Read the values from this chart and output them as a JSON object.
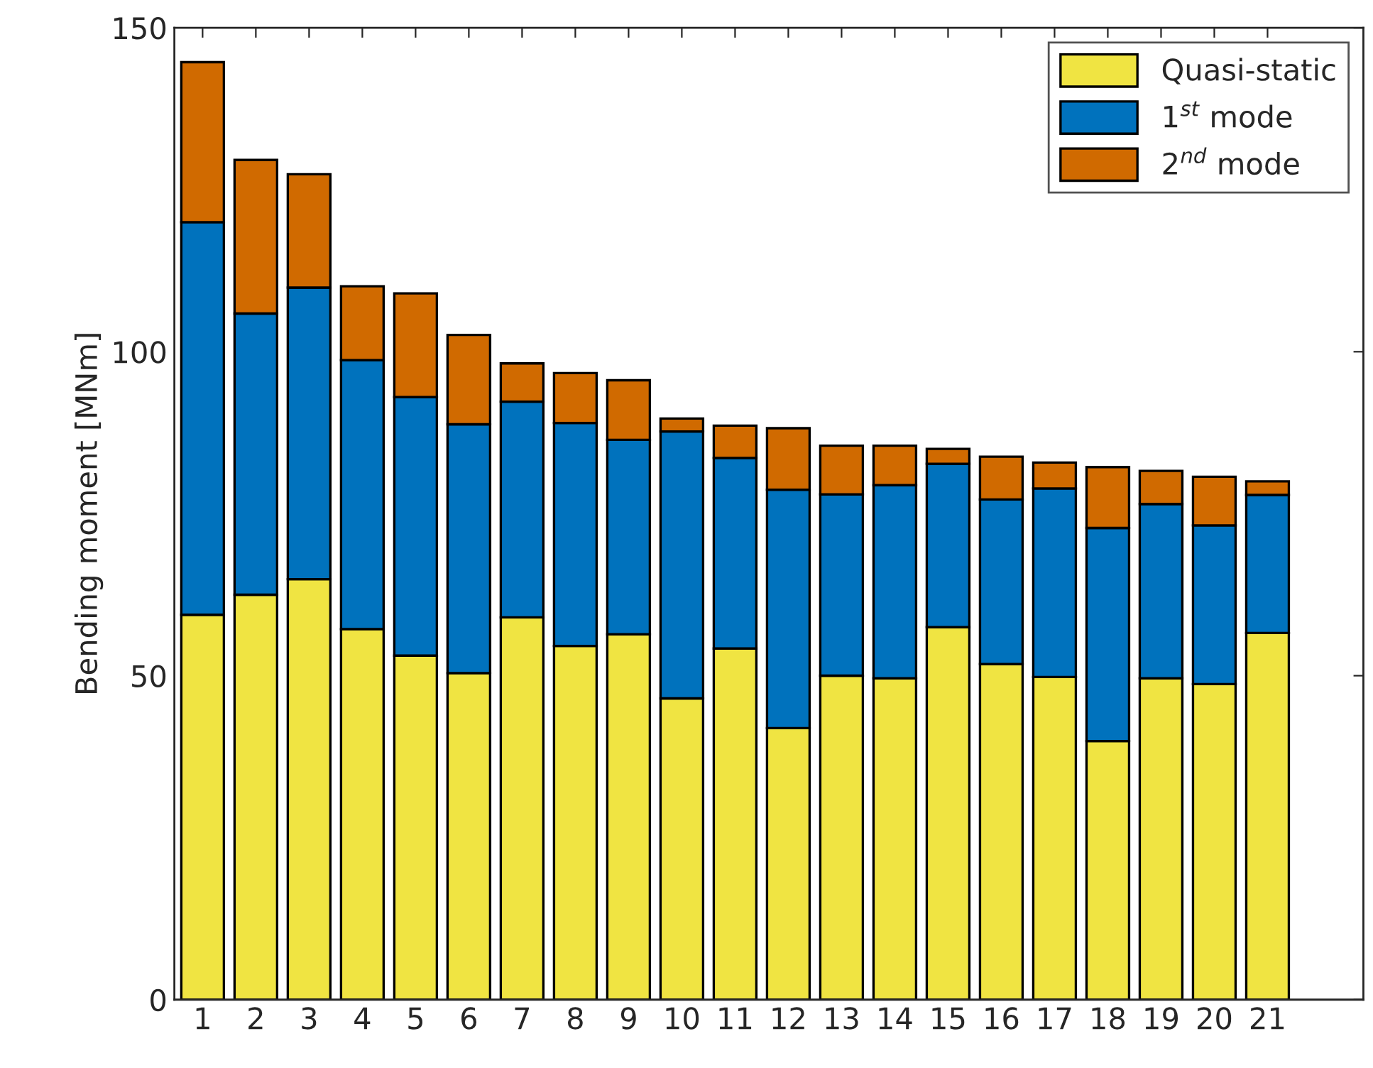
{
  "chart_data": {
    "type": "bar",
    "stacked": true,
    "ylabel": "Bending moment [MNm]",
    "categories": [
      "1",
      "2",
      "3",
      "4",
      "5",
      "6",
      "7",
      "8",
      "9",
      "10",
      "11",
      "12",
      "13",
      "14",
      "15",
      "16",
      "17",
      "18",
      "19",
      "20",
      "21"
    ],
    "series": [
      {
        "name": "Quasi-static",
        "color": "#f0e442",
        "values": [
          59.4,
          62.5,
          64.9,
          57.2,
          53.1,
          50.4,
          59,
          54.6,
          56.4,
          46.5,
          54.2,
          41.9,
          50,
          49.6,
          57.5,
          51.8,
          49.8,
          39.9,
          49.6,
          48.7,
          56.6
        ]
      },
      {
        "name": "1$^{st}$ mode",
        "color": "#0072bd",
        "values": [
          60.6,
          43.4,
          45,
          41.5,
          39.9,
          38.4,
          33.3,
          34.4,
          30,
          41.2,
          29.4,
          36.8,
          28,
          29.8,
          25.2,
          25.4,
          29.1,
          32.9,
          26.9,
          24.5,
          21.3
        ]
      },
      {
        "name": "2$^{nd}$ mode",
        "color": "#d06a00",
        "values": [
          24.7,
          23.7,
          17.5,
          11.4,
          16,
          13.8,
          5.9,
          7.7,
          9.2,
          2,
          5,
          9.5,
          7.5,
          6.1,
          2.3,
          6.6,
          4,
          9.4,
          5.1,
          7.5,
          2.1
        ]
      }
    ],
    "ylim": [
      0,
      150
    ],
    "yticks": [
      0,
      50,
      100,
      150
    ],
    "legend": "top right",
    "grid": false
  }
}
